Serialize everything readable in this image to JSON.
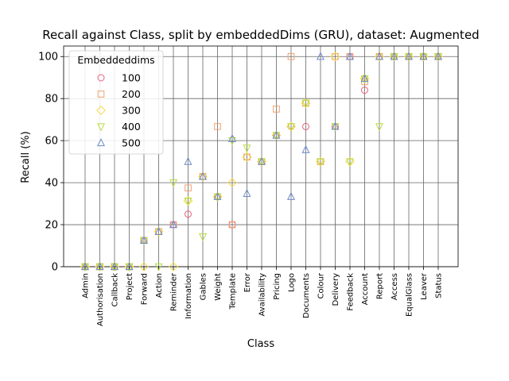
{
  "chart_data": {
    "type": "scatter",
    "title": "Recall against Class, split by embeddedDims (GRU), dataset: Augmented",
    "xlabel": "Class",
    "ylabel": "Recall (%)",
    "ylim": [
      0,
      105
    ],
    "yticks": [
      0,
      20,
      40,
      60,
      80,
      100
    ],
    "grid": true,
    "legend_title": "Embeddeddims",
    "legend_position": "upper-left",
    "categories": [
      "Admin",
      "Authorisation",
      "Callback",
      "Project",
      "Forward",
      "Action",
      "Reminder",
      "Information",
      "Gables",
      "Weight",
      "Template",
      "Error",
      "Availability",
      "Pricing",
      "Logo",
      "Documents",
      "Colour",
      "Delivery",
      "Feedback",
      "Account",
      "Report",
      "Access",
      "EqualGlass",
      "Leaver",
      "Status"
    ],
    "series": [
      {
        "name": "100",
        "marker": "circle",
        "color": "#e8627a",
        "values": [
          0,
          0,
          0,
          0,
          12.5,
          16.7,
          20,
          25,
          42.9,
          33.3,
          20,
          52.2,
          50,
          62.5,
          66.7,
          66.7,
          50,
          66.7,
          100,
          84,
          100,
          100,
          100,
          100,
          100
        ]
      },
      {
        "name": "200",
        "marker": "square",
        "color": "#f0a070",
        "values": [
          0,
          0,
          0,
          0,
          12.5,
          16.7,
          20,
          37.5,
          42.9,
          66.7,
          20,
          52.2,
          50,
          75,
          100,
          77.8,
          50,
          100,
          100,
          88,
          100,
          100,
          100,
          100,
          100
        ]
      },
      {
        "name": "300",
        "marker": "diamond",
        "color": "#f5d840",
        "values": [
          0,
          0,
          0,
          0,
          0,
          16.7,
          0,
          31.3,
          42.9,
          33.3,
          40,
          52.2,
          50,
          62.5,
          66.7,
          77.8,
          50,
          100,
          50,
          89.5,
          100,
          100,
          100,
          100,
          100
        ]
      },
      {
        "name": "400",
        "marker": "triangle-down",
        "color": "#b8dc40",
        "values": [
          0,
          0,
          0,
          0,
          12.5,
          0,
          40,
          31.3,
          14.3,
          33.3,
          60,
          56.5,
          50,
          62.5,
          66.7,
          77.8,
          50,
          66.7,
          50,
          89.5,
          66.7,
          100,
          100,
          100,
          100
        ]
      },
      {
        "name": "500",
        "marker": "triangle-up",
        "color": "#6c88cc",
        "values": [
          0,
          0,
          0,
          0,
          12.5,
          16.7,
          20,
          50,
          42.9,
          33.3,
          60.9,
          34.8,
          50,
          62.5,
          33.3,
          55.6,
          100,
          66.7,
          100,
          89.5,
          100,
          100,
          100,
          100,
          100
        ]
      }
    ]
  }
}
